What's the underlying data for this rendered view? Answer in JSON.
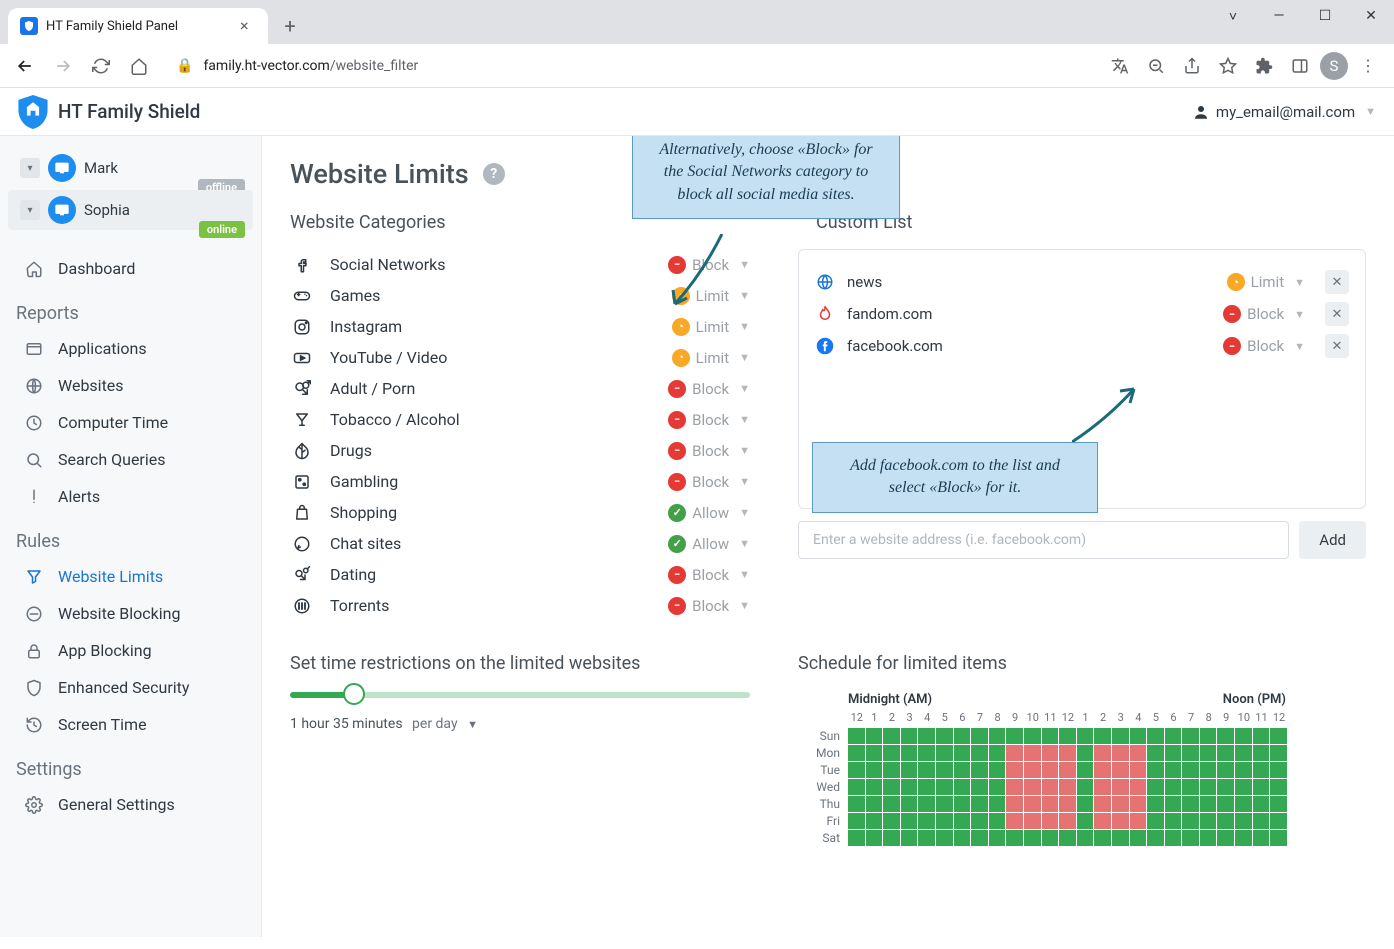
{
  "browser": {
    "tab_title": "HT Family Shield Panel",
    "url_host": "family.ht-vector.com",
    "url_path": "/website_filter",
    "profile_letter": "S"
  },
  "header": {
    "app_name": "HT Family Shield",
    "user_email": "my_email@mail.com"
  },
  "sidebar": {
    "profiles": [
      {
        "name": "Mark",
        "status": "offline",
        "active": false
      },
      {
        "name": "Sophia",
        "status": "online",
        "active": true
      }
    ],
    "items": [
      {
        "icon": "home",
        "label": "Dashboard"
      }
    ],
    "sections": [
      {
        "title": "Reports",
        "items": [
          {
            "icon": "apps",
            "label": "Applications"
          },
          {
            "icon": "globe",
            "label": "Websites"
          },
          {
            "icon": "clock",
            "label": "Computer Time"
          },
          {
            "icon": "search",
            "label": "Search Queries"
          },
          {
            "icon": "alert",
            "label": "Alerts"
          }
        ]
      },
      {
        "title": "Rules",
        "items": [
          {
            "icon": "filter",
            "label": "Website Limits",
            "active": true
          },
          {
            "icon": "block",
            "label": "Website Blocking"
          },
          {
            "icon": "lock",
            "label": "App Blocking"
          },
          {
            "icon": "shield",
            "label": "Enhanced Security"
          },
          {
            "icon": "history",
            "label": "Screen Time"
          }
        ]
      },
      {
        "title": "Settings",
        "items": [
          {
            "icon": "gear",
            "label": "General Settings"
          }
        ]
      }
    ]
  },
  "page": {
    "title": "Website Limits",
    "categories_title": "Website Categories",
    "custom_title": "Custom List",
    "time_section_title": "Set time restrictions on the limited websites",
    "schedule_title": "Schedule for limited items",
    "categories": [
      {
        "icon": "facebook",
        "label": "Social Networks",
        "action": "Block"
      },
      {
        "icon": "gamepad",
        "label": "Games",
        "action": "Limit"
      },
      {
        "icon": "instagram",
        "label": "Instagram",
        "action": "Limit"
      },
      {
        "icon": "youtube",
        "label": "YouTube / Video",
        "action": "Limit"
      },
      {
        "icon": "adult",
        "label": "Adult / Porn",
        "action": "Block"
      },
      {
        "icon": "cocktail",
        "label": "Tobacco / Alcohol",
        "action": "Block"
      },
      {
        "icon": "leaf",
        "label": "Drugs",
        "action": "Block"
      },
      {
        "icon": "dice",
        "label": "Gambling",
        "action": "Block"
      },
      {
        "icon": "bag",
        "label": "Shopping",
        "action": "Allow"
      },
      {
        "icon": "chat",
        "label": "Chat sites",
        "action": "Allow"
      },
      {
        "icon": "dating",
        "label": "Dating",
        "action": "Block"
      },
      {
        "icon": "torrent",
        "label": "Torrents",
        "action": "Block"
      }
    ],
    "custom_list": [
      {
        "icon": "globe2",
        "color": "#1976d2",
        "domain": "news",
        "action": "Limit"
      },
      {
        "icon": "flame",
        "color": "#e53935",
        "domain": "fandom.com",
        "action": "Block"
      },
      {
        "icon": "fb",
        "color": "#1877f2",
        "domain": "facebook.com",
        "action": "Block"
      }
    ],
    "add_placeholder": "Enter a website address (i.e. facebook.com)",
    "add_label": "Add",
    "slider": {
      "value_text": "1 hour 35 minutes",
      "unit": "per day",
      "percent": 14
    },
    "schedule": {
      "header_am": "Midnight (AM)",
      "header_pm": "Noon (PM)",
      "hours": [
        "12",
        "1",
        "2",
        "3",
        "4",
        "5",
        "6",
        "7",
        "8",
        "9",
        "10",
        "11",
        "12",
        "1",
        "2",
        "3",
        "4",
        "5",
        "6",
        "7",
        "8",
        "9",
        "10",
        "11",
        "12"
      ],
      "days": [
        "Sun",
        "Mon",
        "Tue",
        "Wed",
        "Thu",
        "Fri",
        "Sat"
      ],
      "blocked": {
        "Sun": [],
        "Mon": [
          9,
          10,
          11,
          12,
          14,
          15,
          16
        ],
        "Tue": [
          9,
          10,
          11,
          12,
          14,
          15,
          16
        ],
        "Wed": [
          9,
          10,
          11,
          12,
          14,
          15,
          16
        ],
        "Thu": [
          9,
          10,
          11,
          12,
          14,
          15,
          16
        ],
        "Fri": [
          9,
          10,
          11,
          12,
          14,
          15,
          16
        ],
        "Sat": []
      }
    }
  },
  "callouts": {
    "top": "Alternatively, choose «Block» for the Social Networks category to block all social media sites.",
    "bottom": "Add facebook.com to the list and select «Block» for it."
  },
  "colors": {
    "block": "#e53935",
    "limit": "#f9a825",
    "allow": "#43a047",
    "accent": "#1976d2",
    "slider_fill": "#34a853",
    "sched_allow": "#34a853",
    "sched_block": "#e57373",
    "callout_bg": "#c4e0f2",
    "callout_border": "#5a9bc4"
  }
}
